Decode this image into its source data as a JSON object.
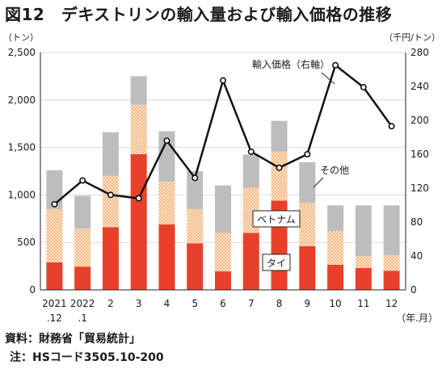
{
  "figure": {
    "title": "図12　デキストリンの輸入量および輸入価格の推移",
    "source_note": "資料：財務省「貿易統計」",
    "remark_note": "注：HSコード3505.10-200"
  },
  "chart_data": {
    "type": "bar",
    "stacked": true,
    "title": "図12　デキストリンの輸入量および輸入価格の推移",
    "categories": [
      [
        "2021",
        ".12"
      ],
      [
        "2022",
        ".1"
      ],
      [
        "2"
      ],
      [
        "3"
      ],
      [
        "4"
      ],
      [
        "5"
      ],
      [
        "6"
      ],
      [
        "7"
      ],
      [
        "8"
      ],
      [
        "9"
      ],
      [
        "10"
      ],
      [
        "11"
      ],
      [
        "12"
      ]
    ],
    "x_unit": "（年.月）",
    "left_axis": {
      "unit": "（トン）",
      "range": [
        0,
        2500
      ],
      "ticks": [
        0,
        500,
        1000,
        1500,
        2000,
        2500
      ],
      "tick_labels": [
        "0",
        "500",
        "1,000",
        "1,500",
        "2,000",
        "2,500"
      ]
    },
    "right_axis": {
      "unit": "（千円/トン）",
      "range": [
        0,
        280
      ],
      "ticks": [
        0,
        40,
        80,
        120,
        160,
        200,
        240,
        280
      ],
      "tick_labels": [
        "0",
        "40",
        "80",
        "120",
        "160",
        "200",
        "240",
        "280"
      ]
    },
    "series": [
      {
        "name": "タイ",
        "color": "#e8402a",
        "pattern": "solid",
        "values": [
          290,
          245,
          660,
          1430,
          690,
          490,
          195,
          600,
          940,
          460,
          265,
          230,
          200
        ]
      },
      {
        "name": "ベトナム",
        "color": "#f6b07a",
        "pattern": "dots",
        "values": [
          560,
          400,
          540,
          520,
          450,
          360,
          405,
          475,
          515,
          455,
          355,
          125,
          165
        ]
      },
      {
        "name": "その他",
        "color": "#bdbdbd",
        "pattern": "solid",
        "values": [
          410,
          345,
          460,
          300,
          530,
          400,
          500,
          350,
          325,
          430,
          270,
          535,
          525
        ]
      }
    ],
    "line": {
      "name": "輸入価格（右軸）",
      "axis": "right",
      "color": "#111111",
      "values": [
        101,
        129,
        112,
        108,
        176,
        132,
        247,
        163,
        144,
        160,
        265,
        239,
        193
      ]
    },
    "annotations": [
      {
        "text": "輸入価格（右軸）",
        "target": "line"
      },
      {
        "text": "その他",
        "target": "series-3"
      },
      {
        "text": "ベトナム",
        "target": "series-2",
        "boxed": true
      },
      {
        "text": "タイ",
        "target": "series-1",
        "boxed": true
      }
    ],
    "grid": true,
    "legend": "inline-labels"
  }
}
